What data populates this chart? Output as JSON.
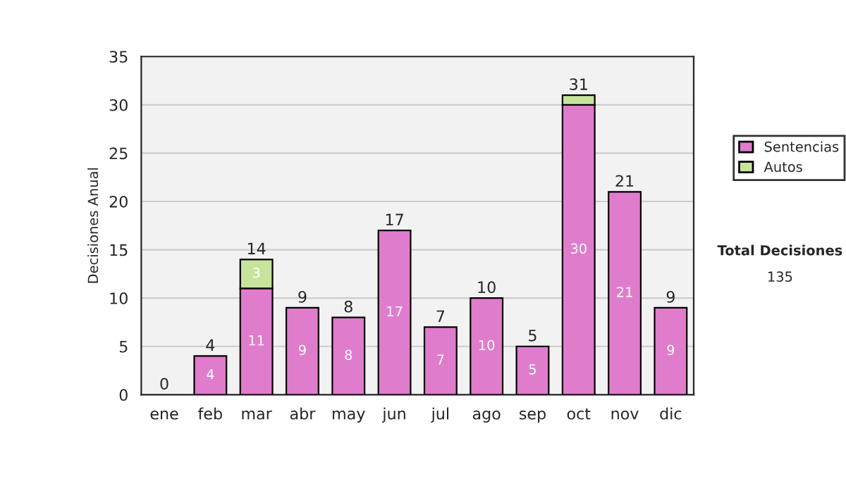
{
  "chart_data": {
    "type": "bar",
    "ylabel": "Decisiones Anual",
    "categories": [
      "ene",
      "feb",
      "mar",
      "abr",
      "may",
      "jun",
      "jul",
      "ago",
      "sep",
      "oct",
      "nov",
      "dic"
    ],
    "stacked": true,
    "series": [
      {
        "name": "Sentencias",
        "color": "#e07ccc",
        "values": [
          0,
          4,
          11,
          9,
          8,
          17,
          7,
          10,
          5,
          30,
          21,
          9
        ],
        "value_labels": [
          null,
          "4",
          "11",
          "9",
          "8",
          "17",
          "7",
          "10",
          "5",
          "30",
          "21",
          "9"
        ]
      },
      {
        "name": "Autos",
        "color": "#c8e49c",
        "values": [
          0,
          0,
          3,
          0,
          0,
          0,
          0,
          0,
          0,
          1,
          0,
          0
        ],
        "value_labels": [
          null,
          null,
          "3",
          null,
          null,
          null,
          null,
          null,
          null,
          null,
          null,
          null
        ]
      }
    ],
    "totals": [
      "0",
      "4",
      "14",
      "9",
      "8",
      "17",
      "7",
      "10",
      "5",
      "31",
      "21",
      "9"
    ],
    "ylim": [
      0,
      35
    ],
    "yticks": [
      0,
      5,
      10,
      15,
      20,
      25,
      30,
      35
    ],
    "grid": "y",
    "legend": "right",
    "annotations": [
      "Total Decisiones",
      "135"
    ]
  }
}
